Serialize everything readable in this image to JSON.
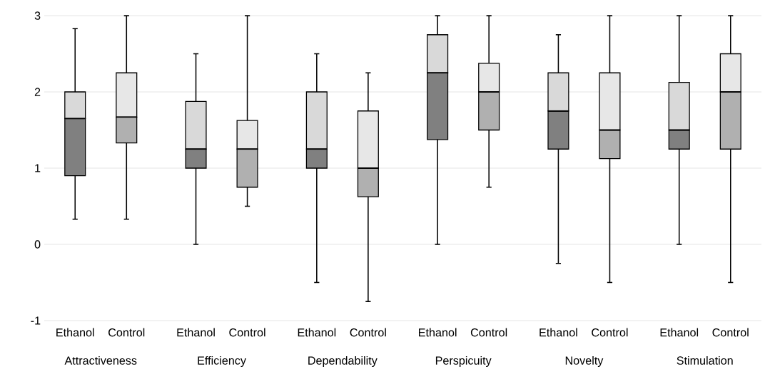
{
  "chart_data": {
    "type": "box",
    "categories": [
      "Ethanol",
      "Control",
      "Ethanol",
      "Control",
      "Ethanol",
      "Control",
      "Ethanol",
      "Control",
      "Ethanol",
      "Control",
      "Ethanol",
      "Control"
    ],
    "colors": [
      "#808080",
      "#b0b0b0",
      "#808080",
      "#b0b0b0",
      "#808080",
      "#b0b0b0",
      "#808080",
      "#b0b0b0",
      "#808080",
      "#b0b0b0",
      "#808080",
      "#b0b0b0"
    ],
    "boxes": [
      {
        "low": 0.33,
        "q1": 0.9,
        "median": 1.65,
        "q3": 2.0,
        "high": 2.83
      },
      {
        "low": 0.33,
        "q1": 1.33,
        "median": 1.67,
        "q3": 2.25,
        "high": 3
      },
      {
        "low": 0,
        "q1": 1.0,
        "median": 1.25,
        "q3": 1.875,
        "high": 2.5
      },
      {
        "low": 0.5,
        "q1": 0.75,
        "median": 1.25,
        "q3": 1.625,
        "high": 3
      },
      {
        "low": -0.5,
        "q1": 1.0,
        "median": 1.25,
        "q3": 2.0,
        "high": 2.5
      },
      {
        "low": -0.75,
        "q1": 0.625,
        "median": 1.0,
        "q3": 1.75,
        "high": 2.25
      },
      {
        "low": 0,
        "q1": 1.375,
        "median": 2.25,
        "q3": 2.75,
        "high": 3
      },
      {
        "low": 0.75,
        "q1": 1.5,
        "median": 2.0,
        "q3": 2.375,
        "high": 3
      },
      {
        "low": -0.25,
        "q1": 1.25,
        "median": 1.75,
        "q3": 2.25,
        "high": 2.75
      },
      {
        "low": -0.5,
        "q1": 1.125,
        "median": 1.5,
        "q3": 2.25,
        "high": 3
      },
      {
        "low": 0,
        "q1": 1.25,
        "median": 1.5,
        "q3": 2.125,
        "high": 3
      },
      {
        "low": -0.5,
        "q1": 1.25,
        "median": 2.0,
        "q3": 2.5,
        "high": 3
      }
    ],
    "annotations": [
      "Attractiveness",
      "Efficiency",
      "Dependability",
      "Perspicuity",
      "Novelty",
      "Stimulation"
    ],
    "ylim": [
      -1,
      3
    ],
    "yticks": [
      -1,
      0,
      1,
      2,
      3
    ],
    "grid": "y"
  }
}
